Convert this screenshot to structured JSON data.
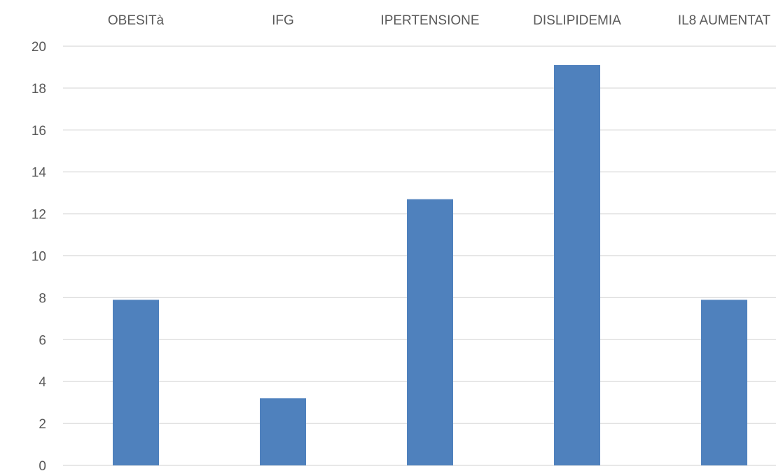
{
  "chart_data": {
    "type": "bar",
    "categories": [
      "OBESITà",
      "IFG",
      "IPERTENSIONE",
      "DISLIPIDEMIA",
      "IL8 AUMENTAT"
    ],
    "values": [
      7.9,
      3.2,
      12.7,
      19.1,
      7.9
    ],
    "title": "",
    "xlabel": "",
    "ylabel": "",
    "ylim": [
      0,
      20
    ],
    "yticks": [
      0,
      2,
      4,
      6,
      8,
      10,
      12,
      14,
      16,
      18,
      20
    ],
    "grid": true,
    "legend": "none",
    "category_axis_position": "top",
    "bar_color": "#4f81bd",
    "grid_color": "#d9d9d9",
    "label_color": "#595959"
  }
}
